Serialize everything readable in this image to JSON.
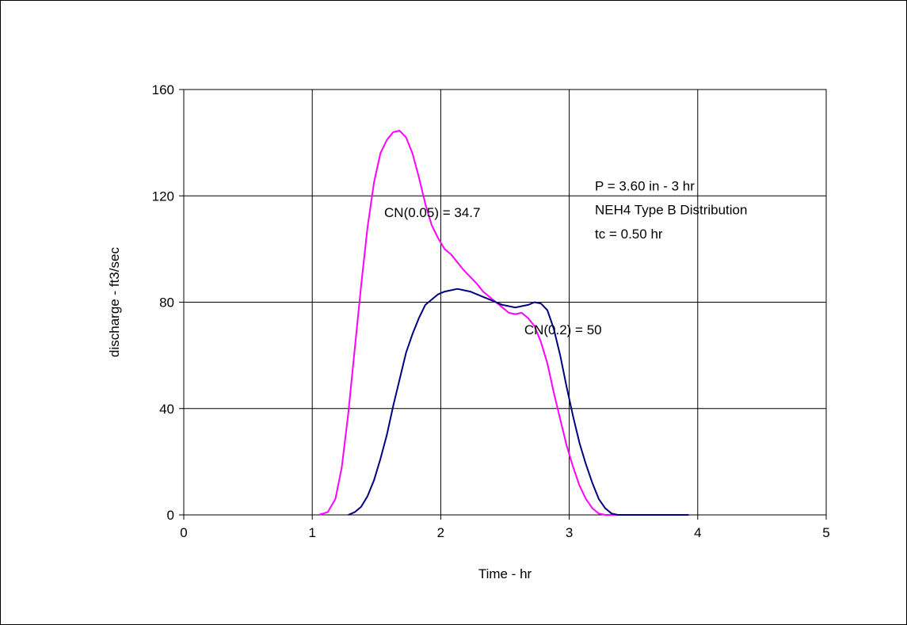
{
  "chart_data": {
    "type": "line",
    "title": "",
    "xlabel": "Time - hr",
    "ylabel": "discharge - ft3/sec",
    "xlim": [
      0,
      5
    ],
    "ylim": [
      0,
      160
    ],
    "xticks": [
      0,
      1,
      2,
      3,
      4,
      5
    ],
    "yticks": [
      0,
      40,
      80,
      120,
      160
    ],
    "xtick_labels": [
      "0",
      "1",
      "2",
      "3",
      "4",
      "5"
    ],
    "ytick_labels": [
      "0",
      "40",
      "80",
      "120",
      "160"
    ],
    "grid": true,
    "legend": "none",
    "series": [
      {
        "name": "CN(0.05) = 34.7",
        "color": "#ff00ff",
        "x": [
          1.05,
          1.12,
          1.18,
          1.23,
          1.28,
          1.33,
          1.38,
          1.43,
          1.48,
          1.53,
          1.58,
          1.63,
          1.68,
          1.73,
          1.78,
          1.83,
          1.88,
          1.93,
          1.98,
          2.03,
          2.08,
          2.13,
          2.18,
          2.23,
          2.28,
          2.33,
          2.38,
          2.43,
          2.48,
          2.53,
          2.58,
          2.63,
          2.68,
          2.73,
          2.78,
          2.83,
          2.88,
          2.93,
          2.98,
          3.03,
          3.08,
          3.13,
          3.18,
          3.23,
          3.28,
          3.33,
          3.38,
          3.43,
          3.48,
          3.53,
          3.58,
          3.63,
          3.68,
          3.73,
          3.78,
          3.83,
          3.88,
          3.93
        ],
        "y": [
          0,
          1,
          6,
          18,
          38,
          62,
          86,
          108,
          125,
          136,
          141,
          144,
          144.5,
          142,
          136,
          127,
          117,
          109,
          104,
          100,
          98,
          95,
          92,
          89.5,
          87,
          84,
          82,
          80,
          78,
          76,
          75.5,
          76,
          74,
          71,
          65,
          57,
          46,
          36,
          26,
          18,
          11,
          6,
          2.5,
          0.5,
          0,
          0,
          0,
          0,
          0,
          0,
          0,
          0,
          0,
          0,
          0,
          0,
          0,
          0
        ]
      },
      {
        "name": "CN(0.2) = 50",
        "color": "#000080",
        "x": [
          1.28,
          1.33,
          1.38,
          1.43,
          1.48,
          1.53,
          1.58,
          1.63,
          1.68,
          1.73,
          1.78,
          1.83,
          1.88,
          1.93,
          1.98,
          2.03,
          2.08,
          2.13,
          2.18,
          2.23,
          2.28,
          2.33,
          2.38,
          2.43,
          2.48,
          2.53,
          2.58,
          2.63,
          2.68,
          2.73,
          2.78,
          2.83,
          2.88,
          2.93,
          2.98,
          3.03,
          3.08,
          3.13,
          3.18,
          3.23,
          3.28,
          3.33,
          3.38,
          3.43,
          3.48,
          3.53,
          3.58,
          3.63,
          3.68,
          3.73,
          3.78,
          3.83,
          3.88,
          3.93
        ],
        "y": [
          0,
          1,
          3,
          7,
          13,
          21,
          30,
          41,
          51,
          61,
          68,
          74,
          79,
          81,
          83,
          84,
          84.5,
          85,
          84.5,
          84,
          83,
          82,
          81,
          80,
          79,
          78.5,
          78,
          78.5,
          79,
          80,
          79.5,
          77,
          70,
          60,
          48,
          37,
          27,
          19,
          12,
          6,
          2.5,
          0.5,
          0,
          0,
          0,
          0,
          0,
          0,
          0,
          0,
          0,
          0,
          0,
          0
        ]
      }
    ],
    "annotations": [
      {
        "text": "CN(0.05) = 34.7",
        "x": 1.56,
        "y": 112
      },
      {
        "text": "CN(0.2) = 50",
        "x": 2.65,
        "y": 68
      },
      {
        "text": "P = 3.60 in - 3 hr",
        "x": 3.2,
        "y": 122
      },
      {
        "text": "NEH4 Type B Distribution",
        "x": 3.2,
        "y": 113
      },
      {
        "text": "tc = 0.50 hr",
        "x": 3.2,
        "y": 104
      }
    ]
  }
}
